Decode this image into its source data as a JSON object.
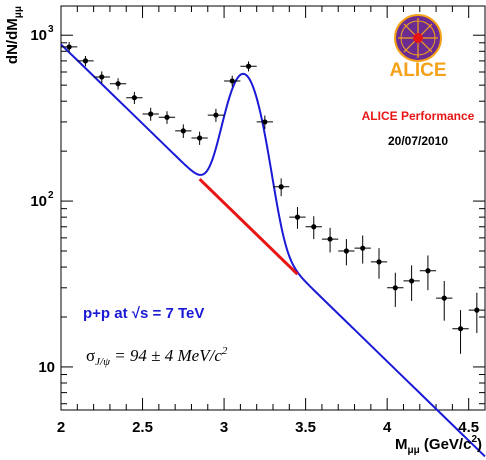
{
  "chart_data": {
    "type": "scatter",
    "x_scale": "linear",
    "y_scale": "log",
    "xlim": [
      2.0,
      4.6
    ],
    "ylim": [
      5.5,
      1500
    ],
    "xlabel": {
      "main": "M",
      "sub": "μμ",
      "unit_pre": " (GeV/c",
      "unit_sup": "2",
      "unit_post": ")"
    },
    "ylabel": {
      "main": "dN/dM",
      "sub": "μμ"
    },
    "x_ticks": [
      {
        "value": 2.0,
        "label": "2"
      },
      {
        "value": 2.5,
        "label": "2.5"
      },
      {
        "value": 3.0,
        "label": "3"
      },
      {
        "value": 3.5,
        "label": "3.5"
      },
      {
        "value": 4.0,
        "label": "4"
      },
      {
        "value": 4.5,
        "label": "4.5"
      }
    ],
    "y_ticks": [
      {
        "value": 10,
        "base": "10",
        "exp": ""
      },
      {
        "value": 100,
        "base": "10",
        "exp": "2"
      },
      {
        "value": 1000,
        "base": "10",
        "exp": "3"
      }
    ],
    "series": [
      {
        "type": "points_with_errors",
        "color": "#000000",
        "points": [
          {
            "x": 2.05,
            "y": 850,
            "err": 60
          },
          {
            "x": 2.15,
            "y": 700,
            "err": 50
          },
          {
            "x": 2.25,
            "y": 560,
            "err": 45
          },
          {
            "x": 2.35,
            "y": 510,
            "err": 40
          },
          {
            "x": 2.45,
            "y": 420,
            "err": 35
          },
          {
            "x": 2.55,
            "y": 335,
            "err": 30
          },
          {
            "x": 2.65,
            "y": 320,
            "err": 28
          },
          {
            "x": 2.75,
            "y": 265,
            "err": 25
          },
          {
            "x": 2.85,
            "y": 240,
            "err": 22
          },
          {
            "x": 2.95,
            "y": 330,
            "err": 30
          },
          {
            "x": 3.05,
            "y": 530,
            "err": 40
          },
          {
            "x": 3.15,
            "y": 650,
            "err": 45
          },
          {
            "x": 3.25,
            "y": 300,
            "err": 28
          },
          {
            "x": 3.35,
            "y": 122,
            "err": 15
          },
          {
            "x": 3.45,
            "y": 80,
            "err": 12
          },
          {
            "x": 3.55,
            "y": 70,
            "err": 11
          },
          {
            "x": 3.65,
            "y": 59,
            "err": 10
          },
          {
            "x": 3.75,
            "y": 50,
            "err": 9
          },
          {
            "x": 3.85,
            "y": 52,
            "err": 10
          },
          {
            "x": 3.95,
            "y": 43,
            "err": 9
          },
          {
            "x": 4.05,
            "y": 30,
            "err": 7
          },
          {
            "x": 4.15,
            "y": 33,
            "err": 8
          },
          {
            "x": 4.25,
            "y": 38,
            "err": 9
          },
          {
            "x": 4.35,
            "y": 26,
            "err": 7
          },
          {
            "x": 4.45,
            "y": 17,
            "err": 5
          },
          {
            "x": 4.55,
            "y": 22,
            "err": 6
          }
        ]
      },
      {
        "type": "fit_total",
        "color": "#1a1ad6",
        "background_norm": 880,
        "background_slope": -2.2,
        "background_x0": 2.0,
        "peak_amplitude": 510,
        "peak_mean": 3.12,
        "peak_sigma": 0.094,
        "x_range": [
          2.0,
          4.6
        ]
      },
      {
        "type": "fit_background",
        "color": "#e81515",
        "x_range": [
          2.85,
          3.45
        ]
      }
    ]
  },
  "annotations": {
    "performance_title": "ALICE Performance",
    "performance_date": "20/07/2010",
    "logo_text": "ALICE",
    "energy_text_prefix": "p+p at ",
    "energy_text_s": "s",
    "energy_text_suffix": " = 7 TeV",
    "sigma_symbol": "σ",
    "sigma_sub": "J/ψ",
    "sigma_value": " = 94 ± 4 MeV/c",
    "sigma_sup": "2"
  },
  "colors": {
    "fit_total": "#1a1ad6",
    "fit_background": "#e81515",
    "performance_red": "#e81515",
    "energy_blue": "#1a1ad6",
    "logo_orange": "#f5a21a",
    "logo_purple": "#6a2c91"
  }
}
